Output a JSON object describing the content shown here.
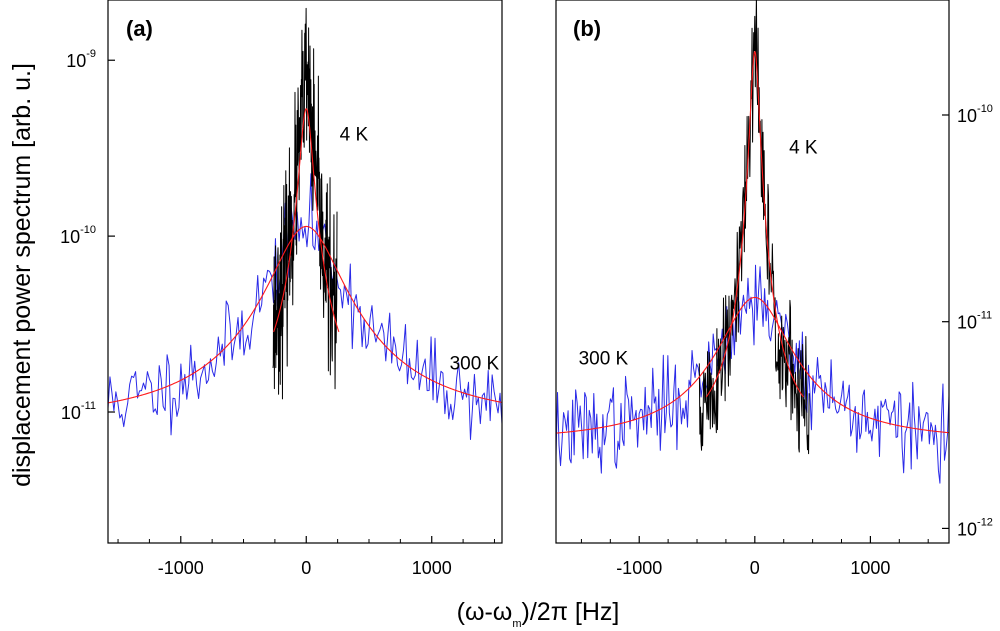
{
  "chart_data": [
    {
      "type": "line",
      "panel": "(a)",
      "ylabel": "displacement power spectrum [arb. u.]",
      "xlabel": "(ω-ω_m)/2π [Hz]",
      "xlim": [
        -1580,
        1560
      ],
      "x_ticks": [
        {
          "value": -1000,
          "label": "-1000"
        },
        {
          "value": 0,
          "label": "0"
        },
        {
          "value": 1000,
          "label": "1000"
        }
      ],
      "y_scale": "log",
      "ylim": [
        1.8e-12,
        2.2e-09
      ],
      "y_axis_side": "left",
      "y_ticks": [
        {
          "value": 1e-11,
          "mantissa": "10",
          "exponent": "-11"
        },
        {
          "value": 1e-10,
          "mantissa": "10",
          "exponent": "-10"
        },
        {
          "value": 1e-09,
          "mantissa": "10",
          "exponent": "-9"
        }
      ],
      "annotations": [
        {
          "text": "4 K",
          "x": 380,
          "y": 3.5e-10
        },
        {
          "text": "300 K",
          "x": 1340,
          "y": 1.75e-11
        }
      ],
      "series": [
        {
          "name": "300 K data",
          "color": "#2a2ae8",
          "kind": "noisy",
          "seed": 11,
          "x_range": [
            -1580,
            1560
          ],
          "n": 200,
          "center": 0,
          "gamma": 260,
          "peak": 1.05e-10,
          "baseline": 8.5e-12,
          "noise": 0.26
        },
        {
          "name": "4 K data",
          "color": "#000000",
          "kind": "noisy",
          "seed": 23,
          "x_range": [
            -265,
            245
          ],
          "n": 230,
          "center": 0,
          "gamma": 48,
          "peak": 7e-10,
          "baseline": 1.05e-11,
          "noise": 0.55
        },
        {
          "name": "300 K fit",
          "color": "#ff1a1a",
          "kind": "fit",
          "x_range": [
            -1580,
            1560
          ],
          "center": 0,
          "gamma": 260,
          "peak": 1.05e-10,
          "baseline": 8.5e-12
        },
        {
          "name": "4 K fit",
          "color": "#ff1a1a",
          "kind": "fit",
          "x_range": [
            -260,
            260
          ],
          "center": 0,
          "gamma": 50,
          "peak": 5.2e-10,
          "baseline": 1e-11
        }
      ]
    },
    {
      "type": "line",
      "panel": "(b)",
      "xlabel": "(ω-ω_m)/2π [Hz]",
      "xlim": [
        -1720,
        1680
      ],
      "x_ticks": [
        {
          "value": -1000,
          "label": "-1000"
        },
        {
          "value": 0,
          "label": "0"
        },
        {
          "value": 1000,
          "label": "1000"
        }
      ],
      "y_scale": "log",
      "ylim": [
        8.5e-13,
        3.6e-10
      ],
      "y_axis_side": "right",
      "y_ticks": [
        {
          "value": 1e-12,
          "mantissa": "10",
          "exponent": "-12"
        },
        {
          "value": 1e-11,
          "mantissa": "10",
          "exponent": "-11"
        },
        {
          "value": 1e-10,
          "mantissa": "10",
          "exponent": "-10"
        }
      ],
      "annotations": [
        {
          "text": "4 K",
          "x": 420,
          "y": 6.5e-11
        },
        {
          "text": "300 K",
          "x": -1310,
          "y": 6.2e-12
        }
      ],
      "series": [
        {
          "name": "300 K data",
          "color": "#2a2ae8",
          "kind": "noisy",
          "seed": 37,
          "x_range": [
            -1720,
            1680
          ],
          "n": 260,
          "center": 0,
          "gamma": 290,
          "peak": 1.05e-11,
          "baseline": 2.6e-12,
          "noise": 0.24
        },
        {
          "name": "4 K data",
          "color": "#000000",
          "kind": "noisy",
          "seed": 51,
          "x_range": [
            -480,
            470
          ],
          "n": 200,
          "center": 0,
          "gamma": 38,
          "peak": 2e-10,
          "baseline": 2.5e-12,
          "noise": 0.38
        },
        {
          "name": "300 K fit",
          "color": "#ff1a1a",
          "kind": "fit",
          "x_range": [
            -1720,
            1680
          ],
          "center": 0,
          "gamma": 290,
          "peak": 1.05e-11,
          "baseline": 2.6e-12
        },
        {
          "name": "4 K fit",
          "color": "#ff1a1a",
          "kind": "fit",
          "x_range": [
            -420,
            420
          ],
          "center": 0,
          "gamma": 38,
          "peak": 2e-10,
          "baseline": 2.7e-12
        }
      ]
    }
  ]
}
